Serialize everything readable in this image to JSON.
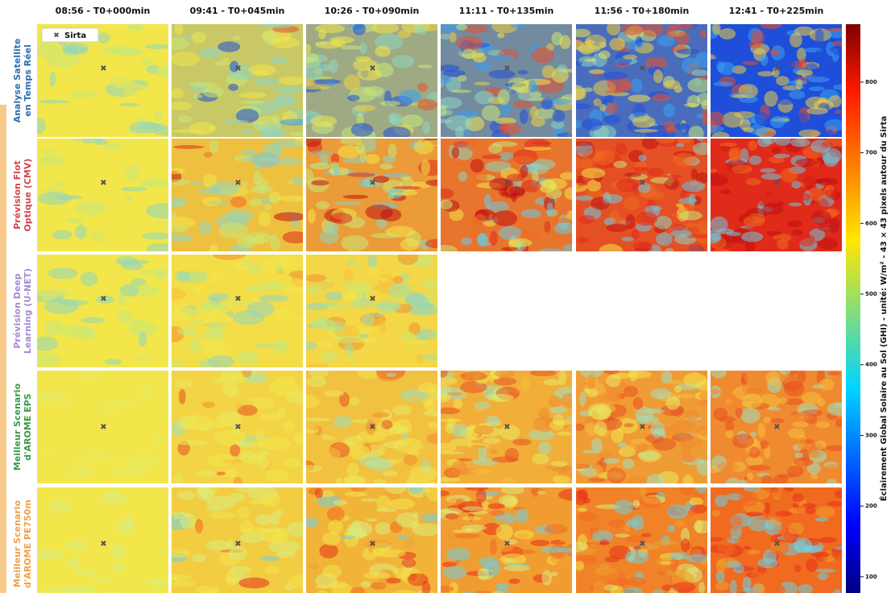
{
  "columns": [
    "08:56 - T0+000min",
    "09:41 - T0+045min",
    "10:26 - T0+090min",
    "11:11 - T0+135min",
    "11:56 - T0+180min",
    "12:41 - T0+225min"
  ],
  "rows": [
    {
      "lines": [
        "Analyse Satellite",
        "en Temps Réel"
      ],
      "color": "#2c6fb0"
    },
    {
      "lines": [
        "Prévision Flot",
        "Optique (CMV)"
      ],
      "color": "#d0474f"
    },
    {
      "lines": [
        "Prévision Deep",
        "Learning (U-NET)"
      ],
      "color": "#a88bd0"
    },
    {
      "lines": [
        "Meilleur Scenario",
        "d'AROME EPS"
      ],
      "color": "#3b9a4a"
    },
    {
      "lines": [
        "Meilleur Scenario",
        "d'AROME PE750m"
      ],
      "color": "#f0a04a"
    }
  ],
  "legend": "Sirta",
  "colorbar": {
    "label": "Éclairement Global Solaire au Sol (GHI) - unité: W/m² - 43 × 43 pixels autour du Sirta",
    "lim": [
      77,
      882
    ],
    "ticks": [
      100,
      200,
      300,
      400,
      500,
      600,
      700,
      800
    ]
  }
}
